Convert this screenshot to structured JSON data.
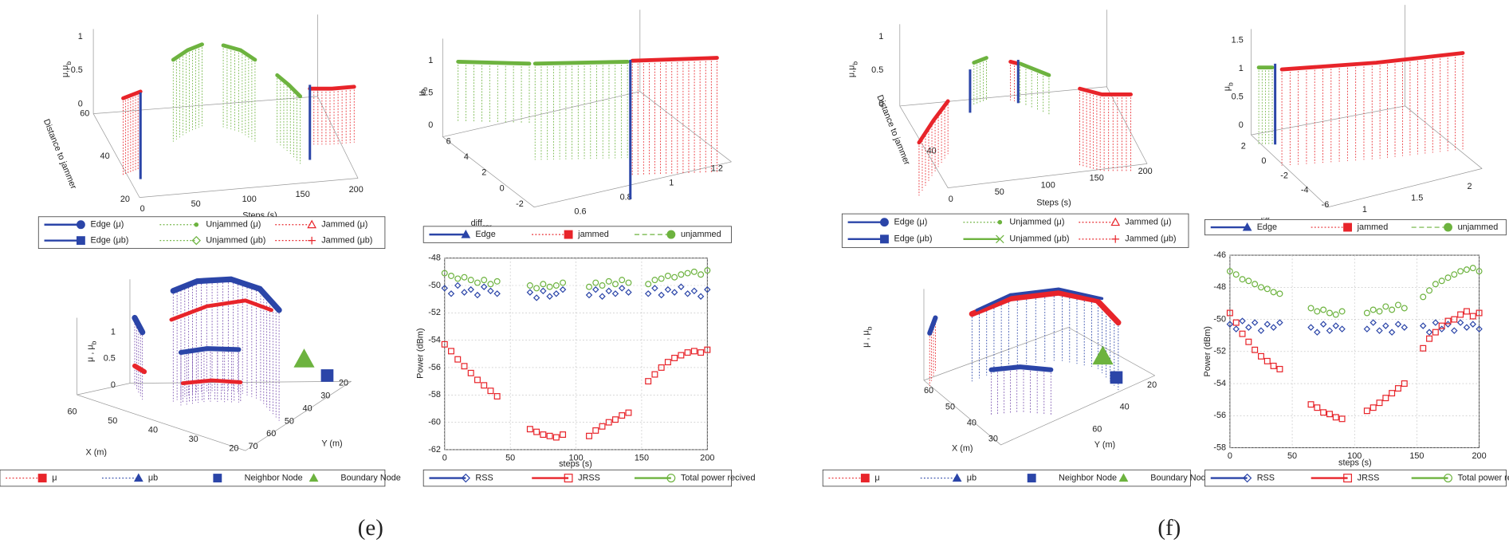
{
  "figure_labels": [
    "(e)",
    "(f)"
  ],
  "chart_data": [
    {
      "type": "surface3d",
      "xlabel": "Steps (s)",
      "ylabel": "Distance to jammer",
      "zlabel": {
        "text": "μ,μ",
        "sub": "b"
      },
      "xticks": [
        0,
        50,
        100,
        150,
        200
      ],
      "yticks": [
        20,
        40,
        60
      ],
      "zticks": [
        0,
        0.5,
        1
      ],
      "legend": [
        {
          "name": "Edge (μ)",
          "color": "#2b45a8",
          "marker": "circle",
          "line": "solid",
          "filled": true
        },
        {
          "name": "Unjammed (μ)",
          "color": "#6db33f",
          "marker": "dot",
          "line": "dotted",
          "filled": true
        },
        {
          "name": "Jammed (μ)",
          "color": "#e8242a",
          "marker": "triangle",
          "line": "dotted"
        },
        {
          "name": "Edge (μb)",
          "color": "#2b45a8",
          "marker": "square",
          "line": "solid",
          "filled": true
        },
        {
          "name": "Unjammed (μb)",
          "color": "#6db33f",
          "marker": "diamond",
          "line": "dotted"
        },
        {
          "name": "Jammed (μb)",
          "color": "#e8242a",
          "marker": "plus",
          "line": "dotted"
        }
      ]
    },
    {
      "type": "surface3d",
      "xlabel": "μ",
      "ylabel": {
        "text": "diff",
        "sub": "snr"
      },
      "zlabel": {
        "text": "μ",
        "sub": "b"
      },
      "xticks": [
        0.6,
        0.8,
        1,
        1.2
      ],
      "yticks": [
        -2,
        0,
        2,
        4,
        6
      ],
      "zticks": [
        0,
        0.5,
        1
      ],
      "legend": [
        {
          "name": "Edge",
          "color": "#2b45a8",
          "marker": "triangle",
          "line": "solid",
          "filled": true
        },
        {
          "name": "jammed",
          "color": "#e8242a",
          "marker": "square",
          "line": "dotted",
          "filled": true
        },
        {
          "name": "unjammed",
          "color": "#6db33f",
          "marker": "circle",
          "line": "dashed",
          "filled": true
        }
      ]
    },
    {
      "type": "surface3d",
      "xlabel": "X (m)",
      "ylabel": "Y (m)",
      "zlabel": {
        "text": "μ , μ",
        "sub": "b"
      },
      "xticks": [
        60,
        50,
        40,
        30,
        20
      ],
      "yticks": [
        70,
        60,
        50,
        40,
        30,
        20
      ],
      "zticks": [
        0,
        0.5,
        1
      ],
      "legend": [
        {
          "name": "μ",
          "color": "#e8242a",
          "marker": "square",
          "line": "dotted",
          "filled": true
        },
        {
          "name": "μb",
          "color": "#2b45a8",
          "marker": "triangle",
          "line": "dotted",
          "filled": true
        },
        {
          "name": "Neighbor Node",
          "color": "#2b45a8",
          "marker": "square",
          "filled": true
        },
        {
          "name": "Boundary Node",
          "color": "#6db33f",
          "marker": "triangle",
          "filled": true
        }
      ]
    },
    {
      "type": "scatter",
      "xlabel": "steps (s)",
      "ylabel": "Power (dBm)",
      "xlim": [
        0,
        200
      ],
      "ylim": [
        -62,
        -48
      ],
      "xticks": [
        0,
        50,
        100,
        150,
        200
      ],
      "yticks": [
        -62,
        -60,
        -58,
        -56,
        -54,
        -52,
        -50,
        -48
      ],
      "grid": true,
      "x": [
        0,
        5,
        10,
        15,
        20,
        25,
        30,
        35,
        40,
        65,
        70,
        75,
        80,
        85,
        90,
        110,
        115,
        120,
        125,
        130,
        135,
        140,
        155,
        160,
        165,
        170,
        175,
        180,
        185,
        190,
        195,
        200
      ],
      "series": [
        {
          "name": "RSS",
          "color": "#2b45a8",
          "marker": "diamond",
          "values": [
            -50.2,
            -50.6,
            -50.0,
            -50.5,
            -50.3,
            -50.7,
            -50.1,
            -50.4,
            -50.6,
            -50.5,
            -50.9,
            -50.4,
            -50.8,
            -50.6,
            -50.3,
            -50.7,
            -50.3,
            -50.8,
            -50.4,
            -50.6,
            -50.2,
            -50.5,
            -50.6,
            -50.2,
            -50.7,
            -50.3,
            -50.5,
            -50.1,
            -50.6,
            -50.4,
            -50.8,
            -50.3
          ]
        },
        {
          "name": "JRSS",
          "color": "#e8242a",
          "marker": "square",
          "values": [
            -54.3,
            -54.8,
            -55.4,
            -55.9,
            -56.4,
            -56.9,
            -57.3,
            -57.7,
            -58.1,
            -60.5,
            -60.7,
            -60.9,
            -61.0,
            -61.1,
            -60.9,
            -61.0,
            -60.6,
            -60.3,
            -60.0,
            -59.8,
            -59.5,
            -59.3,
            -57.0,
            -56.5,
            -56.0,
            -55.6,
            -55.3,
            -55.1,
            -54.9,
            -54.8,
            -54.9,
            -54.7
          ]
        },
        {
          "name": "Total power recived",
          "color": "#6db33f",
          "marker": "circle",
          "values": [
            -49.1,
            -49.3,
            -49.5,
            -49.4,
            -49.6,
            -49.8,
            -49.6,
            -49.9,
            -49.7,
            -50.0,
            -50.2,
            -49.9,
            -50.1,
            -50.0,
            -49.8,
            -50.1,
            -49.8,
            -50.0,
            -49.7,
            -49.9,
            -49.6,
            -49.8,
            -49.9,
            -49.6,
            -49.5,
            -49.3,
            -49.4,
            -49.2,
            -49.1,
            -49.0,
            -49.2,
            -48.9
          ]
        }
      ]
    },
    {
      "type": "surface3d",
      "xlabel": "Steps (s)",
      "ylabel": "Distance to jammer",
      "zlabel": {
        "text": "μ,μ",
        "sub": "b"
      },
      "xticks": [
        0,
        50,
        100,
        150,
        200
      ],
      "yticks": [
        40
      ],
      "zticks": [
        0,
        0.5,
        1
      ],
      "legend": [
        {
          "name": "Edge (μ)",
          "color": "#2b45a8",
          "marker": "circle",
          "line": "solid",
          "filled": true
        },
        {
          "name": "Unjammed (μ)",
          "color": "#6db33f",
          "marker": "dot",
          "line": "dotted",
          "filled": true
        },
        {
          "name": "Jammed (μ)",
          "color": "#e8242a",
          "marker": "triangle",
          "line": "dotted"
        },
        {
          "name": "Edge (μb)",
          "color": "#2b45a8",
          "marker": "square",
          "line": "solid",
          "filled": true
        },
        {
          "name": "Unjammed (μb)",
          "color": "#6db33f",
          "marker": "x",
          "line": "solid"
        },
        {
          "name": "Jammed (μb)",
          "color": "#e8242a",
          "marker": "plus",
          "line": "dotted"
        }
      ]
    },
    {
      "type": "surface3d",
      "xlabel": "μ",
      "ylabel": {
        "text": "diff",
        "sub": "snr"
      },
      "zlabel": {
        "text": "μ",
        "sub": "b"
      },
      "xticks": [
        1,
        1.5,
        2
      ],
      "yticks": [
        2,
        0,
        -2,
        -4,
        -6
      ],
      "zticks": [
        0,
        0.5,
        1,
        1.5
      ],
      "legend": [
        {
          "name": "Edge",
          "color": "#2b45a8",
          "marker": "triangle",
          "line": "solid",
          "filled": true
        },
        {
          "name": "jammed",
          "color": "#e8242a",
          "marker": "square",
          "line": "dotted",
          "filled": true
        },
        {
          "name": "unjammed",
          "color": "#6db33f",
          "marker": "circle",
          "line": "dashed",
          "filled": true
        }
      ]
    },
    {
      "type": "surface3d",
      "xlabel": "X (m)",
      "ylabel": "Y (m)",
      "zlabel": {
        "text": "μ , μ",
        "sub": "b"
      },
      "xticks": [
        60,
        50,
        40,
        30
      ],
      "yticks": [
        60,
        40,
        20
      ],
      "legend": [
        {
          "name": "μ",
          "color": "#e8242a",
          "marker": "square",
          "line": "dotted",
          "filled": true
        },
        {
          "name": "μb",
          "color": "#2b45a8",
          "marker": "triangle",
          "line": "dotted",
          "filled": true
        },
        {
          "name": "Neighbor Node",
          "color": "#2b45a8",
          "marker": "square",
          "filled": true
        },
        {
          "name": "Boundary Node",
          "color": "#6db33f",
          "marker": "triangle",
          "filled": true
        }
      ]
    },
    {
      "type": "scatter",
      "xlabel": "steps (s)",
      "ylabel": "Power (dBm)",
      "xlim": [
        0,
        200
      ],
      "ylim": [
        -58,
        -46
      ],
      "xticks": [
        0,
        50,
        100,
        150,
        200
      ],
      "yticks": [
        -58,
        -56,
        -54,
        -52,
        -50,
        -48,
        -46
      ],
      "grid": true,
      "x": [
        0,
        5,
        10,
        15,
        20,
        25,
        30,
        35,
        40,
        65,
        70,
        75,
        80,
        85,
        90,
        110,
        115,
        120,
        125,
        130,
        135,
        140,
        155,
        160,
        165,
        170,
        175,
        180,
        185,
        190,
        195,
        200
      ],
      "series": [
        {
          "name": "RSS",
          "color": "#2b45a8",
          "marker": "diamond",
          "values": [
            -50.3,
            -50.6,
            -50.1,
            -50.5,
            -50.2,
            -50.7,
            -50.3,
            -50.5,
            -50.2,
            -50.5,
            -50.8,
            -50.3,
            -50.7,
            -50.4,
            -50.6,
            -50.6,
            -50.2,
            -50.7,
            -50.4,
            -50.8,
            -50.3,
            -50.5,
            -50.4,
            -50.8,
            -50.2,
            -50.6,
            -50.3,
            -50.7,
            -50.2,
            -50.5,
            -50.3,
            -50.6
          ]
        },
        {
          "name": "JRSS",
          "color": "#e8242a",
          "marker": "square",
          "values": [
            -49.6,
            -50.2,
            -50.9,
            -51.4,
            -51.9,
            -52.3,
            -52.6,
            -52.9,
            -53.1,
            -55.3,
            -55.5,
            -55.8,
            -55.9,
            -56.1,
            -56.2,
            -55.7,
            -55.5,
            -55.2,
            -54.9,
            -54.6,
            -54.3,
            -54.0,
            -51.8,
            -51.2,
            -50.8,
            -50.4,
            -50.1,
            -50.0,
            -49.7,
            -49.5,
            -49.8,
            -49.6
          ]
        },
        {
          "name": "Total power recived",
          "color": "#6db33f",
          "marker": "circle",
          "values": [
            -47.0,
            -47.2,
            -47.5,
            -47.6,
            -47.8,
            -48.0,
            -48.1,
            -48.3,
            -48.4,
            -49.3,
            -49.5,
            -49.4,
            -49.6,
            -49.7,
            -49.5,
            -49.6,
            -49.4,
            -49.5,
            -49.2,
            -49.4,
            -49.1,
            -49.3,
            -48.6,
            -48.2,
            -47.8,
            -47.6,
            -47.4,
            -47.2,
            -47.0,
            -46.9,
            -46.8,
            -47.0
          ]
        }
      ]
    }
  ]
}
